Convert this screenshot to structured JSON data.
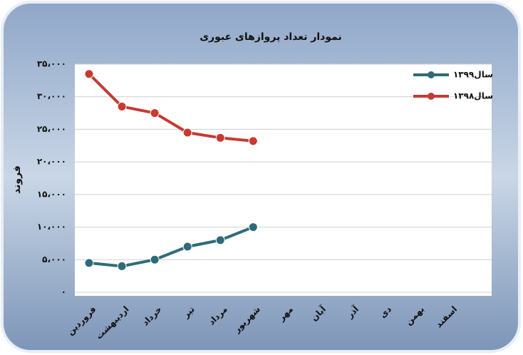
{
  "chart_data": {
    "type": "line",
    "title": "نمودار تعداد پروازهای عبوری",
    "ylabel": "فروند",
    "categories": [
      "فروردین",
      "اردیبهشت",
      "خرداد",
      "تیر",
      "مرداد",
      "شهریور",
      "مهر",
      "آبان",
      "آذر",
      "دی",
      "بهمن",
      "اسفند"
    ],
    "series": [
      {
        "name": "سال۱۳۹۹",
        "color": "#2e6b78",
        "values": [
          4500,
          4000,
          5000,
          7000,
          8000,
          10000,
          null,
          null,
          null,
          null,
          null,
          null
        ]
      },
      {
        "name": "سال۱۳۹۸",
        "color": "#c63a32",
        "values": [
          33500,
          28500,
          27500,
          24500,
          23700,
          23200,
          null,
          null,
          null,
          null,
          null,
          null
        ]
      }
    ],
    "ylim": [
      0,
      35000
    ],
    "yticks": [
      {
        "value": 0,
        "label": "۰"
      },
      {
        "value": 5000,
        "label": "۵،۰۰۰"
      },
      {
        "value": 10000,
        "label": "۱۰،۰۰۰"
      },
      {
        "value": 15000,
        "label": "۱۵،۰۰۰"
      },
      {
        "value": 20000,
        "label": "۲۰،۰۰۰"
      },
      {
        "value": 25000,
        "label": "۲۵،۰۰۰"
      },
      {
        "value": 30000,
        "label": "۳۰،۰۰۰"
      },
      {
        "value": 35000,
        "label": "۳۵،۰۰۰"
      }
    ],
    "grid": true
  }
}
